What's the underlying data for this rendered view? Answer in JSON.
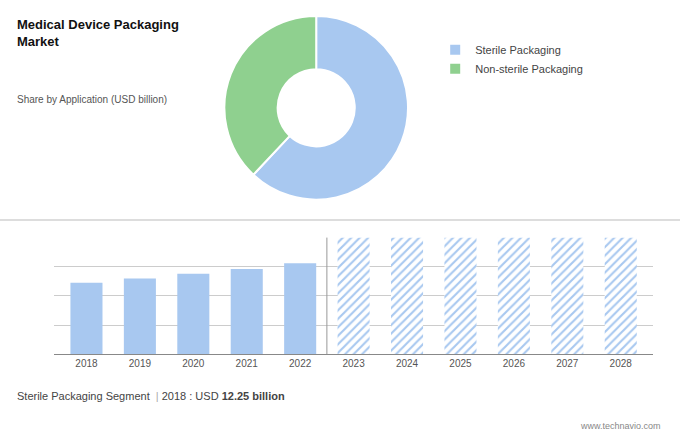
{
  "chart_data": [
    {
      "type": "donut",
      "title": "Medical Device Packaging\nMarket",
      "subtitle": "Share by Application (USD billion)",
      "categories": [
        "Sterile Packaging",
        "Non-sterile Packaging"
      ],
      "values": [
        62,
        38
      ],
      "colors": [
        "#a8c8f0",
        "#8fd08f"
      ],
      "legend": "right"
    },
    {
      "type": "bar",
      "x": [
        2018,
        2019,
        2020,
        2021,
        2022,
        2023,
        2024,
        2025,
        2026,
        2027,
        2028
      ],
      "series": [
        {
          "color": "#a8c8f0",
          "values": [
            12.25,
            13.0,
            13.8,
            14.6,
            15.6,
            null,
            null,
            null,
            null,
            null,
            null
          ]
        },
        {
          "color": "#a8c8f0",
          "marker": "hatched",
          "values": [
            null,
            null,
            null,
            null,
            null,
            20,
            20,
            20,
            20,
            20,
            20
          ]
        }
      ],
      "xlim": [
        2017.4,
        2028.6
      ],
      "xticks": [
        2018,
        2019,
        2020,
        2021,
        2022,
        2023,
        2024,
        2025,
        2026,
        2027,
        2028
      ],
      "ylim": [
        0,
        20
      ],
      "yticks": [
        0,
        5,
        10,
        15,
        20
      ],
      "grid": true,
      "tick_labels": "x",
      "annotations": [
        "Sterile Packaging Segment",
        "|",
        "2018 : USD ",
        "12.25 billion",
        "www.technavio.com"
      ]
    }
  ]
}
